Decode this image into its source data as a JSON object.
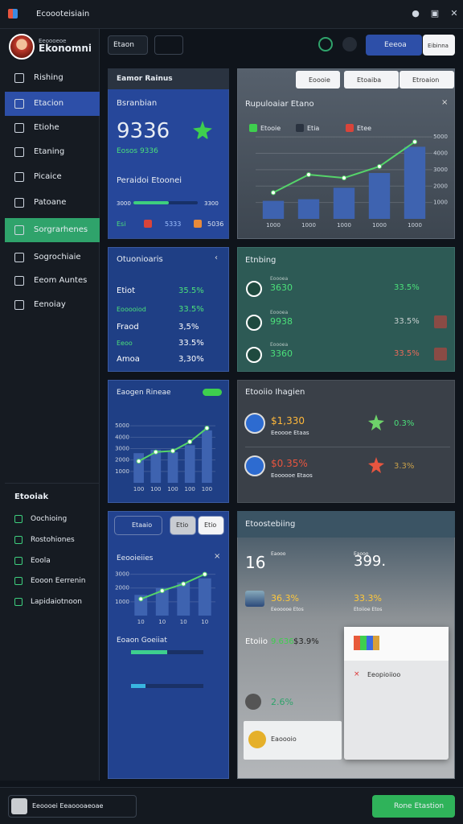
{
  "titlebar": {
    "title": "Ecoooteisiain"
  },
  "sidebar": {
    "profile": {
      "caption": "Eeoooeoe",
      "name": "Ekonomni"
    },
    "menu": [
      "Rishing",
      "Etacion",
      "Etiohe",
      "Etaning",
      "Picaice",
      "Patoane",
      "Sorgrarhenes",
      "Sogrochiaie",
      "Eeom Auntes",
      "Eenoiay"
    ],
    "section_title": "Etooiak",
    "section_items": [
      "Oochioing",
      "Rostohiones",
      "Eoola",
      "Eooon Eerrenin",
      "Lapidaiotnoon"
    ]
  },
  "toolbar": {
    "dropdown": "Etaon",
    "primary_button": "Eeeoa",
    "secondary_button": "Eibinna"
  },
  "cards": {
    "balance": {
      "header": "Eamor Rainus",
      "title": "Bsranbian",
      "value": "9336",
      "subtitle": "Eosos 9336",
      "progress_title": "Peraidoi Etoonei",
      "progress_start": "3000",
      "progress_end": "3300",
      "progress": 55,
      "stats": [
        "Esi",
        "5333",
        "5036"
      ]
    },
    "trend": {
      "filters": [
        "Eoooie",
        "Etoaiba",
        "Etroaion"
      ],
      "title": "Rupuloaiar Etano",
      "legend": [
        "Etooie",
        "Etia",
        "Etee"
      ],
      "chart": {
        "type": "bar",
        "categories": [
          "1000",
          "1000",
          "1000",
          "1000",
          "1000"
        ],
        "ylim": [
          0,
          5500
        ],
        "yticks": [
          1000,
          2000,
          3000,
          4000,
          5000
        ],
        "series": [
          {
            "type": "bar",
            "color": "#3e63b0",
            "values": [
              1100,
              1200,
              1900,
              2800,
              4400
            ]
          },
          {
            "type": "line",
            "color": "#55d46a",
            "values": [
              1600,
              2700,
              2500,
              3200,
              4700
            ]
          }
        ]
      }
    },
    "accounts": {
      "title": "Otuonioaris",
      "rows": [
        {
          "name": "Etiot",
          "value": "35.5%"
        },
        {
          "name": "Eooooiod",
          "value": "33.5%"
        },
        {
          "name": "Fraod",
          "value": "3,5%"
        },
        {
          "name": "Eeoo",
          "value": "33.5%"
        },
        {
          "name": "Amoa",
          "value": "3,30%"
        }
      ]
    },
    "ranking": {
      "title": "Etnbing",
      "rows": [
        {
          "value": "3630",
          "caption": "Eoooea",
          "change": "33.5%"
        },
        {
          "value": "9938",
          "caption": "Eoooea",
          "change": "33.5%"
        },
        {
          "value": "3360",
          "caption": "Eoooea",
          "change": "33.5%"
        }
      ]
    },
    "growth": {
      "title": "Eaogen Rineae",
      "chart": {
        "type": "bar",
        "categories": [
          "100",
          "100",
          "100",
          "100",
          "100"
        ],
        "ylim": [
          0,
          6000
        ],
        "yticks": [
          1000,
          2000,
          3000,
          4000,
          5000
        ],
        "series": [
          {
            "type": "bar",
            "color": "#3e63b0",
            "values": [
              2600,
              2900,
              2700,
              3300,
              4600
            ]
          },
          {
            "type": "line",
            "color": "#55d46a",
            "values": [
              1900,
              2700,
              2800,
              3600,
              4800
            ]
          }
        ]
      }
    },
    "insights": {
      "title": "Etooiio Ihagien",
      "rows": [
        {
          "value": "$1,330",
          "caption": "Eeoooe Etaas",
          "change": "0.3%"
        },
        {
          "value": "$0.35%",
          "caption": "Eoooooe Etaos",
          "change": "3.3%"
        }
      ]
    },
    "activity": {
      "tabs": [
        "Etaaio",
        "Etio",
        "Etio"
      ],
      "title": "Eeooieiies",
      "chart": {
        "type": "bar",
        "categories": [
          "10",
          "10",
          "10",
          "10"
        ],
        "ylim": [
          0,
          3500
        ],
        "yticks": [
          1000,
          2000,
          3000
        ],
        "series": [
          {
            "type": "bar",
            "color": "#3e63b0",
            "values": [
              1500,
              2000,
              2400,
              2700
            ]
          },
          {
            "type": "line",
            "color": "#55d46a",
            "values": [
              1200,
              1800,
              2300,
              3000
            ]
          }
        ]
      },
      "progress_title": "Eoaon Goeiiat",
      "progress": [
        50,
        20
      ]
    },
    "summary": {
      "title": "Etoostebiing",
      "stats": [
        {
          "value": "16",
          "caption": "Eaooo"
        },
        {
          "value": "399.",
          "caption": "Eaooo"
        },
        {
          "value": "36.3%",
          "caption": "Eeooooe Etos"
        },
        {
          "value": "33.3%",
          "caption": "Etoiioe Etos"
        }
      ],
      "row": [
        "Etoiio",
        "9.636",
        "$3.9%"
      ],
      "change": "2.6%",
      "popup": "Eeopioiioo",
      "note": "Eaoooio"
    }
  },
  "footer": {
    "profile": "Eeoooei Eeaoooaeoae",
    "button": "Rone Etastion"
  }
}
